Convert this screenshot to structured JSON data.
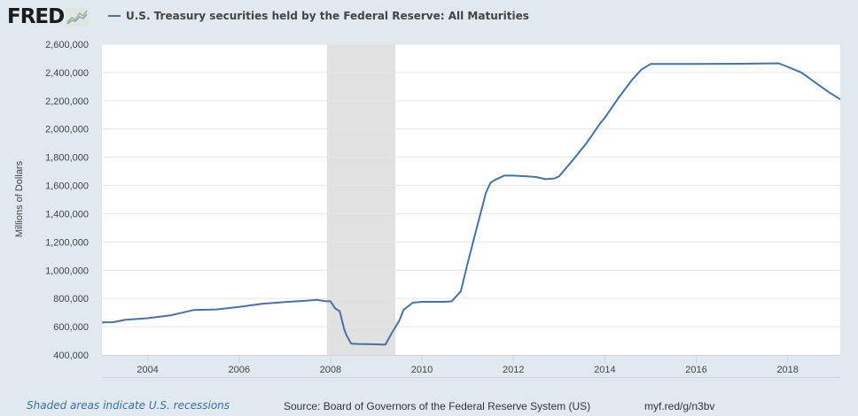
{
  "header": {
    "logo_text": "FRED",
    "logo_icon": "chart-line-icon",
    "series_title": "U.S. Treasury securities held by the Federal Reserve: All Maturities"
  },
  "footer": {
    "recession_note": "Shaded areas indicate U.S. recessions",
    "source": "Source: Board of Governors of the Federal Reserve System (US)",
    "short_link": "myf.red/g/n3bv"
  },
  "colors": {
    "background": "#e1e9f0",
    "plot_background": "#ffffff",
    "series": "#4572a7",
    "recession": "#e1e1e1",
    "grid": "#e6e6e6"
  },
  "chart_data": {
    "type": "line",
    "title": "U.S. Treasury securities held by the Federal Reserve: All Maturities",
    "xlabel": "",
    "ylabel": "Millions of Dollars",
    "xlim": [
      2003.0,
      2019.15
    ],
    "ylim": [
      400000,
      2600000
    ],
    "yticks": [
      400000,
      600000,
      800000,
      1000000,
      1200000,
      1400000,
      1600000,
      1800000,
      2000000,
      2200000,
      2400000,
      2600000
    ],
    "ytick_labels": [
      "400,000",
      "600,000",
      "800,000",
      "1,000,000",
      "1,200,000",
      "1,400,000",
      "1,600,000",
      "1,800,000",
      "2,000,000",
      "2,200,000",
      "2,400,000",
      "2,600,000"
    ],
    "xticks": [
      2004,
      2006,
      2008,
      2010,
      2012,
      2014,
      2016,
      2018
    ],
    "xtick_labels": [
      "2004",
      "2006",
      "2008",
      "2010",
      "2012",
      "2014",
      "2016",
      "2018"
    ],
    "grid": true,
    "legend": "top-left",
    "recessions": [
      [
        2007.92,
        2009.42
      ]
    ],
    "series": [
      {
        "name": "U.S. Treasury securities held by the Federal Reserve: All Maturities",
        "x": [
          2003.0,
          2003.25,
          2003.5,
          2004.0,
          2004.5,
          2005.0,
          2005.5,
          2006.0,
          2006.5,
          2007.0,
          2007.5,
          2007.7,
          2007.9,
          2008.0,
          2008.1,
          2008.2,
          2008.3,
          2008.35,
          2008.45,
          2008.6,
          2009.0,
          2009.2,
          2009.35,
          2009.5,
          2009.6,
          2009.8,
          2010.0,
          2010.5,
          2010.65,
          2010.85,
          2011.0,
          2011.2,
          2011.4,
          2011.5,
          2011.6,
          2011.8,
          2012.0,
          2012.3,
          2012.5,
          2012.7,
          2012.9,
          2013.0,
          2013.3,
          2013.6,
          2013.9,
          2014.0,
          2014.3,
          2014.6,
          2014.8,
          2015.0,
          2016.0,
          2017.0,
          2017.8,
          2018.0,
          2018.3,
          2018.6,
          2018.9,
          2019.15
        ],
        "values": [
          630000,
          632000,
          648000,
          660000,
          680000,
          718000,
          722000,
          740000,
          762000,
          775000,
          785000,
          790000,
          780000,
          780000,
          730000,
          710000,
          580000,
          540000,
          480000,
          478000,
          475000,
          473000,
          560000,
          640000,
          720000,
          770000,
          776000,
          776000,
          780000,
          850000,
          1050000,
          1300000,
          1550000,
          1620000,
          1640000,
          1670000,
          1670000,
          1665000,
          1660000,
          1645000,
          1650000,
          1665000,
          1780000,
          1900000,
          2040000,
          2080000,
          2220000,
          2350000,
          2420000,
          2460000,
          2460000,
          2462000,
          2465000,
          2440000,
          2400000,
          2330000,
          2260000,
          2210000
        ]
      }
    ]
  }
}
